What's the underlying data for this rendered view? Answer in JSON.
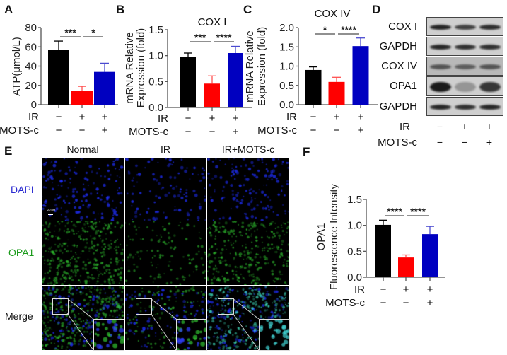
{
  "panels": {
    "A": "A",
    "B": "B",
    "C": "C",
    "D": "D",
    "E": "E",
    "F": "F"
  },
  "colors": {
    "normal": "#000000",
    "ir": "#ff0000",
    "ir_mots": "#0000c0",
    "dapi": "#2a2ad0",
    "opa1": "#1a9a1a"
  },
  "chart_data": [
    {
      "id": "A",
      "type": "bar",
      "title": "",
      "ylabel": "ATP(μmol/L)",
      "ylim": [
        0,
        80
      ],
      "yticks": [
        "0",
        "20",
        "40",
        "60",
        "80"
      ],
      "categories": [
        "Normal",
        "IR",
        "IR+MOTS-c"
      ],
      "values": [
        57,
        14,
        34
      ],
      "errors": [
        9,
        5,
        9
      ],
      "significance": [
        {
          "from": 0,
          "to": 1,
          "label": "***"
        },
        {
          "from": 1,
          "to": 2,
          "label": "*"
        }
      ],
      "conditions": [
        {
          "label": "IR",
          "signs": [
            "−",
            "+",
            "+"
          ]
        },
        {
          "label": "MOTS-c",
          "signs": [
            "−",
            "−",
            "+"
          ]
        }
      ]
    },
    {
      "id": "B",
      "type": "bar",
      "title": "COX I",
      "ylabel": [
        "mRNA Relative",
        "Expression (fold)"
      ],
      "ylim": [
        0,
        1.5
      ],
      "yticks": [
        "0.0",
        "0.5",
        "1.0",
        "1.5"
      ],
      "categories": [
        "Normal",
        "IR",
        "IR+MOTS-c"
      ],
      "values": [
        0.97,
        0.46,
        1.05
      ],
      "errors": [
        0.08,
        0.15,
        0.13
      ],
      "significance": [
        {
          "from": 0,
          "to": 1,
          "label": "***"
        },
        {
          "from": 1,
          "to": 2,
          "label": "****"
        }
      ],
      "conditions": [
        {
          "label": "IR",
          "signs": [
            "−",
            "+",
            "+"
          ]
        },
        {
          "label": "MOTS-c",
          "signs": [
            "−",
            "−",
            "+"
          ]
        }
      ]
    },
    {
      "id": "C",
      "type": "bar",
      "title": "COX IV",
      "ylabel": [
        "mRNA Relative",
        "Expression (fold)"
      ],
      "ylim": [
        0,
        2.0
      ],
      "yticks": [
        "0.0",
        "0.5",
        "1.0",
        "1.5",
        "2.0"
      ],
      "categories": [
        "Normal",
        "IR",
        "IR+MOTS-c"
      ],
      "values": [
        0.9,
        0.59,
        1.52
      ],
      "errors": [
        0.08,
        0.12,
        0.21
      ],
      "significance": [
        {
          "from": 0,
          "to": 1,
          "label": "*"
        },
        {
          "from": 1,
          "to": 2,
          "label": "****"
        }
      ],
      "conditions": [
        {
          "label": "IR",
          "signs": [
            "−",
            "+",
            "+"
          ]
        },
        {
          "label": "MOTS-c",
          "signs": [
            "−",
            "−",
            "+"
          ]
        }
      ]
    },
    {
      "id": "F",
      "type": "bar",
      "title": "",
      "ylabel": [
        "OPA1",
        "Fluorescence Intensity"
      ],
      "ylim": [
        0,
        1.5
      ],
      "yticks": [
        "0.0",
        "0.5",
        "1.0",
        "1.5"
      ],
      "categories": [
        "Normal",
        "IR",
        "IR+MOTS-c"
      ],
      "values": [
        1.01,
        0.38,
        0.83
      ],
      "errors": [
        0.09,
        0.05,
        0.15
      ],
      "significance": [
        {
          "from": 0,
          "to": 1,
          "label": "****"
        },
        {
          "from": 1,
          "to": 2,
          "label": "****"
        }
      ],
      "conditions": [
        {
          "label": "IR",
          "signs": [
            "−",
            "+",
            "+"
          ]
        },
        {
          "label": "MOTS-c",
          "signs": [
            "−",
            "−",
            "+"
          ]
        }
      ]
    }
  ],
  "western_blot": {
    "rows": [
      "COX I",
      "GAPDH",
      "COX IV",
      "OPA1",
      "GAPDH"
    ],
    "band_intensity": [
      [
        0.9,
        0.75,
        0.85
      ],
      [
        0.9,
        0.85,
        0.85
      ],
      [
        0.6,
        0.55,
        0.6
      ],
      [
        0.95,
        0.3,
        0.8
      ],
      [
        0.9,
        0.85,
        0.9
      ]
    ],
    "conditions": [
      {
        "label": "IR",
        "signs": [
          "−",
          "+",
          "+"
        ]
      },
      {
        "label": "MOTS-c",
        "signs": [
          "−",
          "−",
          "+"
        ]
      }
    ]
  },
  "microscopy": {
    "columns": [
      "Normal",
      "IR",
      "IR+MOTS-c"
    ],
    "rows": [
      "DAPI",
      "OPA1",
      "Merge"
    ],
    "scale_bar": "20 μm",
    "opa1_signal": [
      0.9,
      0.3,
      0.8
    ]
  }
}
